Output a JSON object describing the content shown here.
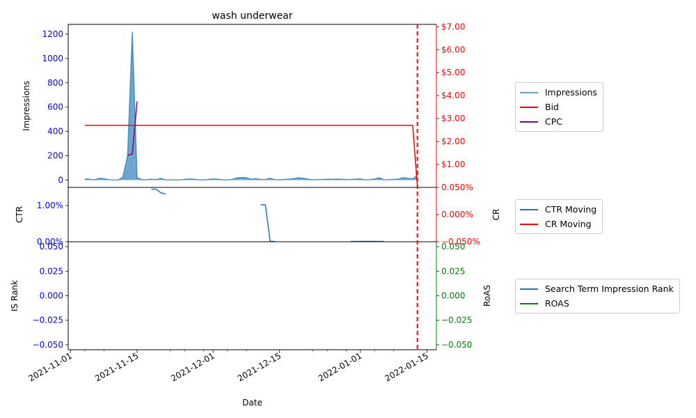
{
  "chart_data": [
    {
      "type": "area+line",
      "title": "wash underwear",
      "ylabel_left": "Impressions",
      "ylim_left": [
        -60,
        1280
      ],
      "yticks_left": [
        "0",
        "200",
        "400",
        "600",
        "800",
        "1000",
        "1200"
      ],
      "ylim_right": [
        0,
        7.1
      ],
      "yticks_right": [
        "$1.00",
        "$2.00",
        "$3.00",
        "$4.00",
        "$5.00",
        "$6.00",
        "$7.00"
      ],
      "series": [
        {
          "name": "Impressions",
          "color": "#1f77b4",
          "axis": "left",
          "x": [
            "2021-11-04",
            "2021-11-05",
            "2021-11-06",
            "2021-11-07",
            "2021-11-08",
            "2021-11-09",
            "2021-11-10",
            "2021-11-11",
            "2021-11-12",
            "2021-11-13",
            "2021-11-14",
            "2021-11-15",
            "2021-11-16",
            "2021-11-17",
            "2021-11-18",
            "2021-11-19",
            "2021-11-20",
            "2021-11-21",
            "2021-11-22",
            "2021-11-23",
            "2021-11-24",
            "2021-11-25",
            "2021-11-26",
            "2021-11-27",
            "2021-11-28",
            "2021-11-29",
            "2021-11-30",
            "2021-12-01",
            "2021-12-02",
            "2021-12-03",
            "2021-12-04",
            "2021-12-05",
            "2021-12-06",
            "2021-12-07",
            "2021-12-08",
            "2021-12-09",
            "2021-12-10",
            "2021-12-11",
            "2021-12-12",
            "2021-12-13",
            "2021-12-14",
            "2021-12-15",
            "2021-12-16",
            "2021-12-17",
            "2021-12-18",
            "2021-12-19",
            "2021-12-20",
            "2021-12-21",
            "2021-12-22",
            "2021-12-23",
            "2021-12-24",
            "2021-12-25",
            "2021-12-26",
            "2021-12-27",
            "2021-12-28",
            "2021-12-29",
            "2021-12-30",
            "2021-12-31",
            "2022-01-01",
            "2022-01-02",
            "2022-01-03",
            "2022-01-04",
            "2022-01-05",
            "2022-01-06",
            "2022-01-07",
            "2022-01-08",
            "2022-01-09",
            "2022-01-10",
            "2022-01-11",
            "2022-01-12",
            "2022-01-13"
          ],
          "values": [
            10,
            8,
            3,
            15,
            12,
            4,
            2,
            1,
            25,
            200,
            1220,
            20,
            5,
            3,
            8,
            4,
            15,
            2,
            3,
            1,
            2,
            6,
            10,
            7,
            3,
            2,
            6,
            10,
            8,
            3,
            2,
            6,
            18,
            22,
            20,
            8,
            12,
            6,
            5,
            15,
            4,
            3,
            6,
            8,
            12,
            20,
            15,
            8,
            3,
            5,
            6,
            8,
            7,
            9,
            8,
            6,
            5,
            8,
            10,
            2,
            4,
            10,
            20,
            2,
            4,
            6,
            8,
            20,
            15,
            10,
            40
          ]
        },
        {
          "name": "Bid",
          "color": "#ff0000",
          "axis": "right",
          "x": [
            "2021-11-04",
            "2022-01-12",
            "2022-01-13"
          ],
          "values": [
            2.7,
            2.7,
            0.05
          ]
        },
        {
          "name": "CPC",
          "color": "#800080",
          "axis": "right",
          "x": [
            "2021-11-13",
            "2021-11-14",
            "2021-11-15"
          ],
          "values": [
            1.4,
            1.45,
            3.75
          ]
        }
      ],
      "legend": "right"
    },
    {
      "type": "line",
      "ylabel_left": "CTR",
      "ylabel_right": "CR",
      "ylim_left": [
        0,
        1.5
      ],
      "yticks_left": [
        "0.00%",
        "1.00%"
      ],
      "ylim_right": [
        -0.05,
        0.05
      ],
      "yticks_right": [
        "−0.050%",
        "0.000%",
        "0.050%"
      ],
      "series": [
        {
          "name": "CTR Moving",
          "color": "#1f77b4",
          "axis": "left",
          "segments": [
            {
              "x": [
                "2021-11-18",
                "2021-11-19",
                "2021-11-20",
                "2021-11-21"
              ],
              "values": [
                1.45,
                1.45,
                1.35,
                1.32
              ]
            },
            {
              "x": [
                "2021-12-11",
                "2021-12-12",
                "2021-12-13",
                "2021-12-14"
              ],
              "values": [
                1.02,
                1.02,
                0.01,
                0.01
              ]
            },
            {
              "x": [
                "2021-12-30",
                "2022-01-06"
              ],
              "values": [
                0.01,
                0.01
              ]
            }
          ]
        },
        {
          "name": "CR Moving",
          "color": "#ff0000",
          "axis": "right",
          "segments": []
        }
      ],
      "legend": "right"
    },
    {
      "type": "line",
      "ylabel_left": "IS Rank",
      "ylabel_right": "RoAS",
      "xlabel": "Date",
      "ylim_left": [
        -0.055,
        0.055
      ],
      "yticks_left": [
        "−0.050",
        "−0.025",
        "0.000",
        "0.025",
        "0.050"
      ],
      "ylim_right": [
        -0.055,
        0.055
      ],
      "yticks_right": [
        "−0.050",
        "−0.025",
        "0.000",
        "0.025",
        "0.050"
      ],
      "xticks": [
        "2021-11-01",
        "2021-11-15",
        "2021-12-01",
        "2021-12-15",
        "2022-01-01",
        "2022-01-15"
      ],
      "series": [
        {
          "name": "Search Term Impression Rank",
          "color": "#1f77b4",
          "axis": "left",
          "values": []
        },
        {
          "name": "ROAS",
          "color": "#008000",
          "axis": "right",
          "values": []
        }
      ],
      "legend": "right"
    }
  ],
  "marker": {
    "date": "2022-01-13",
    "color": "#ff0000",
    "style": "dashed"
  },
  "colors": {
    "left_axis": "#0000ff",
    "cr_axis": "#ff0000",
    "roas_axis": "#008000"
  }
}
